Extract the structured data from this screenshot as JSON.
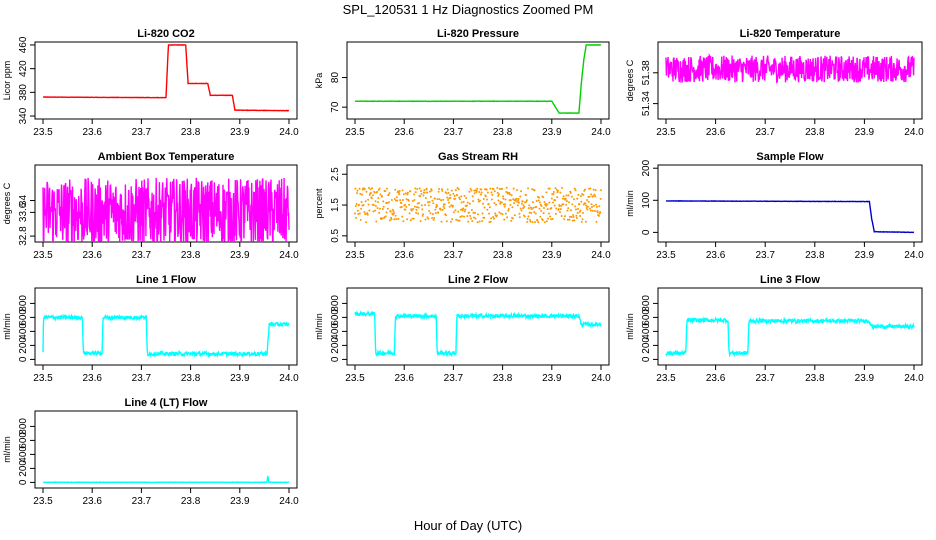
{
  "figure": {
    "title": "SPL_120531  1 Hz Diagnostics Zoomed PM",
    "xlabel": "Hour of Day (UTC)"
  },
  "chart_data": [
    {
      "type": "line",
      "title": "Li-820 CO2",
      "ylabel": "Licor ppm",
      "color": "#ff0000",
      "xlim": [
        23.5,
        24.0
      ],
      "ylim": [
        335,
        465
      ],
      "xticks": [
        "23.5",
        "23.6",
        "23.7",
        "23.8",
        "23.9",
        "24.0"
      ],
      "yticks": [
        340,
        380,
        420,
        460
      ],
      "x": [
        23.5,
        23.75,
        23.755,
        23.79,
        23.795,
        23.835,
        23.84,
        23.885,
        23.89,
        24.0
      ],
      "y": [
        372,
        371,
        460,
        460,
        395,
        395,
        375,
        375,
        350,
        349
      ]
    },
    {
      "type": "line",
      "title": "Li-820 Pressure",
      "ylabel": "kPa",
      "color": "#00d000",
      "xlim": [
        23.5,
        24.0
      ],
      "ylim": [
        66,
        92
      ],
      "xticks": [
        "23.5",
        "23.6",
        "23.7",
        "23.8",
        "23.9",
        "24.0"
      ],
      "yticks": [
        70,
        80
      ],
      "x": [
        23.5,
        23.9,
        23.915,
        23.955,
        23.96,
        23.965,
        23.97,
        24.0
      ],
      "y": [
        72,
        72,
        68,
        68,
        78,
        86,
        91,
        91
      ]
    },
    {
      "type": "line",
      "title": "Li-820 Temperature",
      "ylabel": "degrees C",
      "color": "#ff00ff",
      "xlim": [
        23.5,
        24.0
      ],
      "ylim": [
        51.32,
        51.42
      ],
      "xticks": [
        "23.5",
        "23.6",
        "23.7",
        "23.8",
        "23.9",
        "24.0"
      ],
      "yticks": [
        51.34,
        51.38
      ],
      "x": [
        23.5,
        24.0
      ],
      "y": [
        51.385,
        51.385
      ]
    },
    {
      "type": "line",
      "title": "Ambient Box Temperature",
      "ylabel": "degrees C",
      "color": "#ff00ff",
      "xlim": [
        23.5,
        24.0
      ],
      "ylim": [
        32.6,
        35.2
      ],
      "xticks": [
        "23.5",
        "23.6",
        "23.7",
        "23.8",
        "23.9",
        "24.0"
      ],
      "yticks": [
        32.8,
        33.6,
        34.0
      ],
      "x": [
        23.5,
        24.0
      ],
      "y": [
        33.6,
        33.6
      ]
    },
    {
      "type": "scatter",
      "title": "Gas Stream RH",
      "ylabel": "percent",
      "color": "#ff9900",
      "xlim": [
        23.5,
        24.0
      ],
      "ylim": [
        0.3,
        2.8
      ],
      "xticks": [
        "23.5",
        "23.6",
        "23.7",
        "23.8",
        "23.9",
        "24.0"
      ],
      "yticks": [
        0.5,
        1.5,
        2.5
      ],
      "x": [
        23.5,
        24.0
      ],
      "y": [
        1.5,
        1.5
      ]
    },
    {
      "type": "line",
      "title": "Sample Flow",
      "ylabel": "ml/min",
      "color": "#0000cc",
      "xlim": [
        23.5,
        24.0
      ],
      "ylim": [
        -30,
        210
      ],
      "xticks": [
        "23.5",
        "23.6",
        "23.7",
        "23.8",
        "23.9",
        "24.0"
      ],
      "yticks": [
        0,
        100,
        200
      ],
      "x": [
        23.5,
        23.91,
        23.915,
        23.92,
        24.0
      ],
      "y": [
        98,
        96,
        40,
        2,
        0
      ]
    },
    {
      "type": "line",
      "title": "Line 1 Flow",
      "ylabel": "ml/min",
      "color": "#00ffff",
      "xlim": [
        23.5,
        24.0
      ],
      "ylim": [
        -80,
        1020
      ],
      "xticks": [
        "23.5",
        "23.6",
        "23.7",
        "23.8",
        "23.9",
        "24.0"
      ],
      "yticks": [
        0,
        200,
        400,
        600,
        800
      ],
      "x": [
        23.5,
        23.501,
        23.58,
        23.582,
        23.62,
        23.622,
        23.71,
        23.712,
        23.955,
        23.96,
        24.0
      ],
      "y": [
        100,
        600,
        600,
        90,
        90,
        600,
        600,
        80,
        80,
        500,
        500
      ]
    },
    {
      "type": "line",
      "title": "Line 2 Flow",
      "ylabel": "ml/min",
      "color": "#00ffff",
      "xlim": [
        23.5,
        24.0
      ],
      "ylim": [
        -80,
        1020
      ],
      "xticks": [
        "23.5",
        "23.6",
        "23.7",
        "23.8",
        "23.9",
        "24.0"
      ],
      "yticks": [
        0,
        200,
        400,
        600,
        800
      ],
      "x": [
        23.5,
        23.54,
        23.542,
        23.58,
        23.582,
        23.665,
        23.667,
        23.705,
        23.707,
        23.955,
        23.96,
        24.0
      ],
      "y": [
        650,
        650,
        90,
        90,
        620,
        620,
        90,
        90,
        620,
        620,
        500,
        500
      ]
    },
    {
      "type": "line",
      "title": "Line 3 Flow",
      "ylabel": "ml/min",
      "color": "#00ffff",
      "xlim": [
        23.5,
        24.0
      ],
      "ylim": [
        -80,
        1020
      ],
      "xticks": [
        "23.5",
        "23.6",
        "23.7",
        "23.8",
        "23.9",
        "24.0"
      ],
      "yticks": [
        0,
        200,
        400,
        600,
        800
      ],
      "x": [
        23.5,
        23.501,
        23.54,
        23.542,
        23.625,
        23.627,
        23.665,
        23.667,
        23.91,
        23.915,
        24.0
      ],
      "y": [
        90,
        90,
        90,
        560,
        560,
        90,
        90,
        550,
        550,
        470,
        470
      ]
    },
    {
      "type": "line",
      "title": "Line 4 (LT) Flow",
      "ylabel": "ml/min",
      "color": "#00ffff",
      "xlim": [
        23.5,
        24.0
      ],
      "ylim": [
        -80,
        1020
      ],
      "xticks": [
        "23.5",
        "23.6",
        "23.7",
        "23.8",
        "23.9",
        "24.0"
      ],
      "yticks": [
        0,
        200,
        400,
        600,
        800
      ],
      "x": [
        23.5,
        23.955,
        23.957,
        23.959,
        24.0
      ],
      "y": [
        2,
        2,
        100,
        2,
        2
      ]
    }
  ]
}
